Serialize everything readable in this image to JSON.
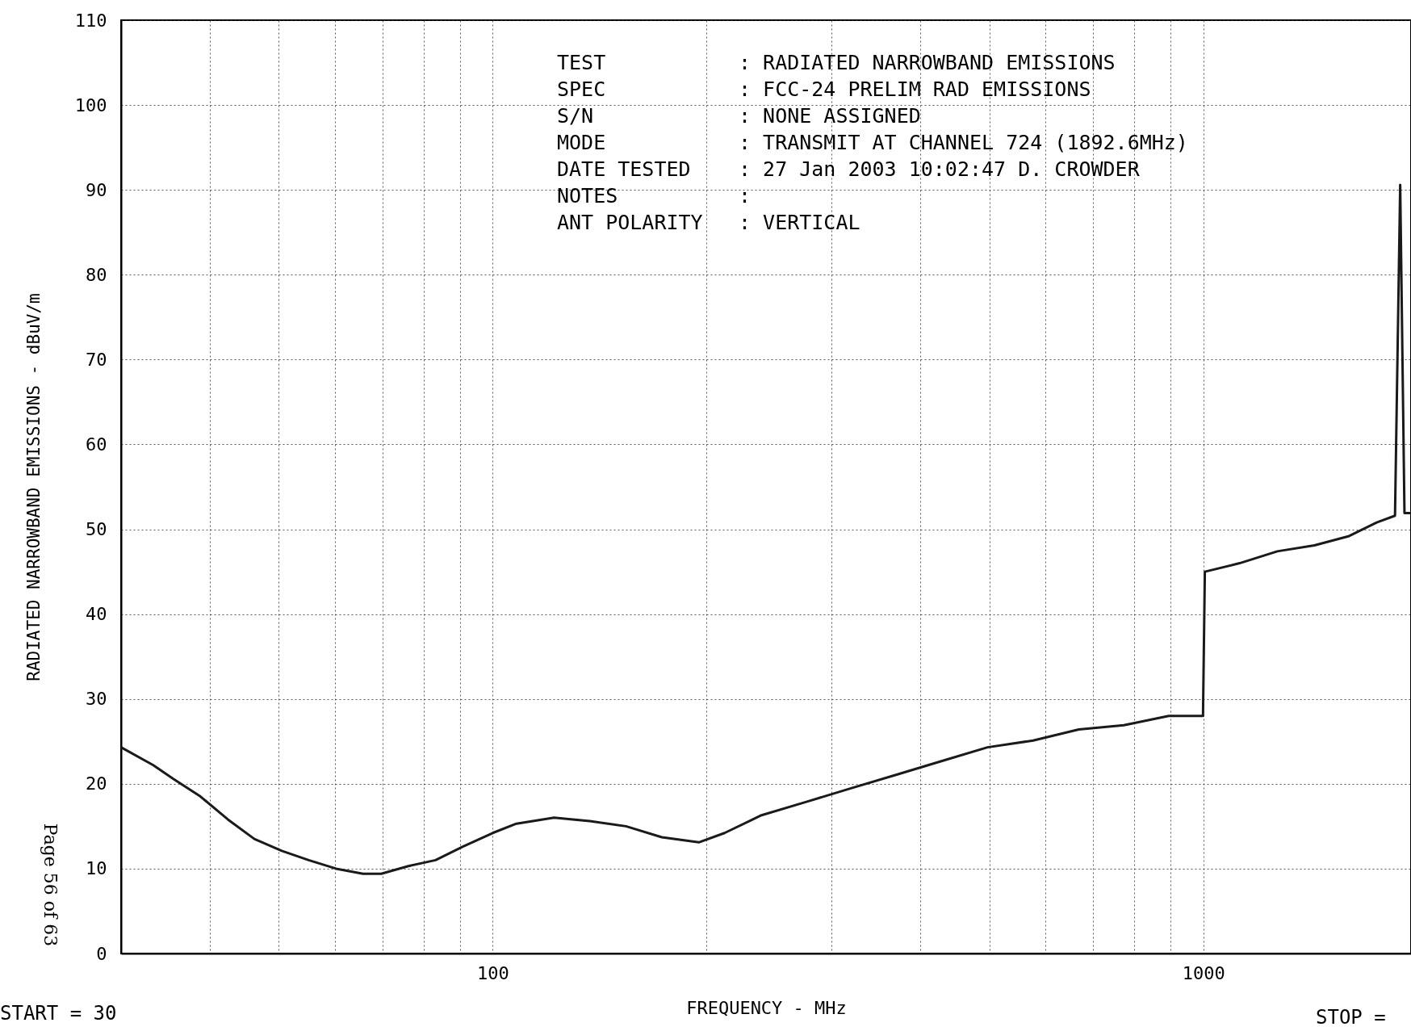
{
  "chart_data": {
    "type": "line",
    "xlabel": "FREQUENCY - MHz",
    "ylabel": "RADIATED NARROWBAND EMISSIONS - dBuV/m",
    "log": "x",
    "grid": true,
    "marker": "none",
    "line_style": "solid",
    "xlim": [
      30,
      1960
    ],
    "ylim": [
      0,
      110
    ],
    "xticks": [
      {
        "value": 40,
        "label": null
      },
      {
        "value": 50,
        "label": null
      },
      {
        "value": 60,
        "label": null
      },
      {
        "value": 70,
        "label": null
      },
      {
        "value": 80,
        "label": null
      },
      {
        "value": 90,
        "label": null
      },
      100,
      {
        "value": 200,
        "label": null
      },
      {
        "value": 300,
        "label": null
      },
      {
        "value": 400,
        "label": null
      },
      {
        "value": 500,
        "label": null
      },
      {
        "value": 600,
        "label": null
      },
      {
        "value": 700,
        "label": null
      },
      {
        "value": 800,
        "label": null
      },
      {
        "value": 900,
        "label": null
      },
      1000
    ],
    "yticks": [
      0,
      10,
      20,
      30,
      40,
      50,
      60,
      70,
      80,
      90,
      100,
      110
    ],
    "series": [
      {
        "color": "#1a1a1a",
        "x": [
          30,
          33.3,
          35.5,
          38.8,
          42.4,
          46.2,
          50.5,
          55.1,
          60.2,
          65.7,
          69.7,
          76.1,
          83.1,
          90.8,
          100,
          108,
          122,
          137,
          154,
          173,
          195,
          212,
          239,
          277,
          320,
          371,
          429,
          497,
          576,
          668,
          773,
          894,
          999,
          1005,
          1125,
          1271,
          1433,
          1604,
          1754,
          1861,
          1892.6,
          1919,
          1960
        ],
        "values": [
          24.3,
          22.2,
          20.6,
          18.5,
          15.8,
          13.5,
          12.1,
          11.0,
          10.0,
          9.4,
          9.4,
          10.3,
          11.0,
          12.6,
          14.2,
          15.3,
          16.0,
          15.6,
          15.0,
          13.7,
          13.1,
          14.2,
          16.3,
          17.9,
          19.5,
          21.1,
          22.7,
          24.3,
          25.1,
          26.4,
          26.9,
          28.0,
          28.0,
          45.0,
          46.0,
          47.4,
          48.1,
          49.2,
          50.8,
          51.6,
          90.6,
          51.9,
          51.9
        ]
      }
    ],
    "annotations": [
      "TEST : RADIATED NARROWBAND EMISSIONS",
      "SPEC : FCC-24 PRELIM RAD EMISSIONS",
      "S/N : NONE ASSIGNED",
      "MODE : TRANSMIT AT CHANNEL 724 (1892.6MHz)",
      "DATE TESTED : 27 Jan 2003 10:02:47 D. CROWDER",
      "NOTES :",
      "ANT POLARITY : VERTICAL",
      "START = 30",
      "STOP =",
      "Page 56 of 63"
    ]
  }
}
